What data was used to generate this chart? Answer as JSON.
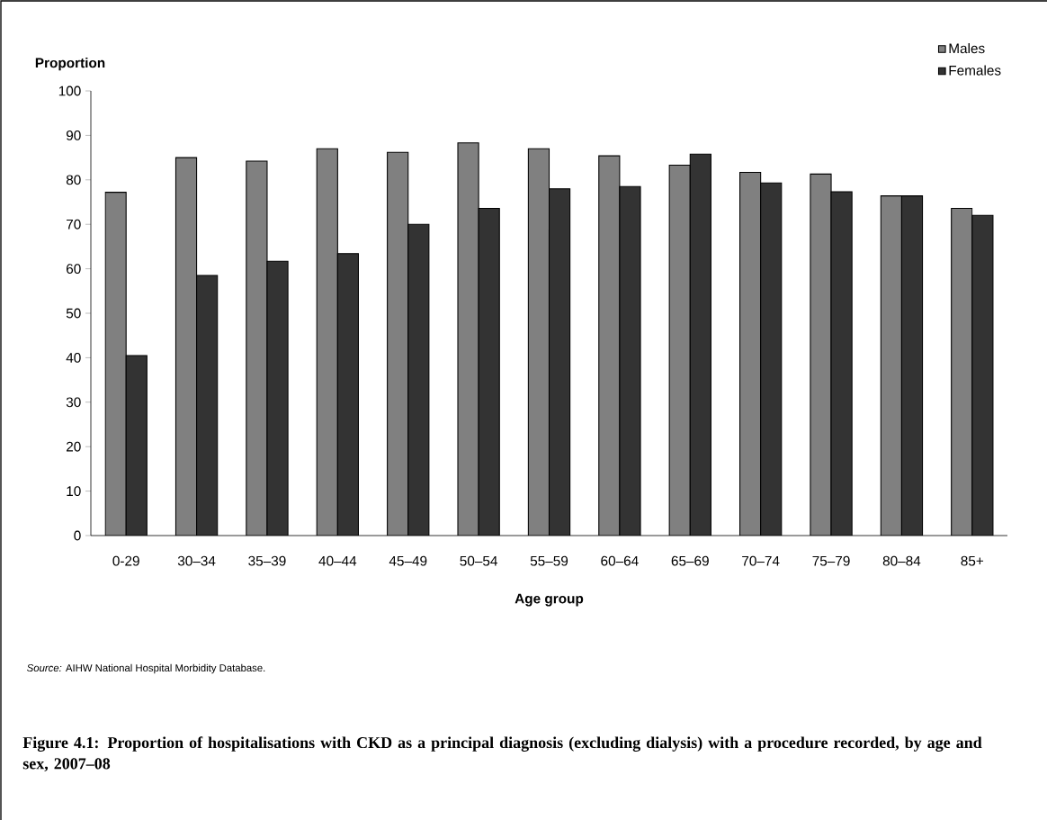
{
  "chart_data": {
    "type": "bar",
    "title": "Figure 4.1: Proportion of hospitalisations with CKD as a principal diagnosis (excluding dialysis) with a procedure recorded, by age and sex, 2007–08",
    "xlabel": "Age group",
    "ylabel": "Proportion",
    "annotations": [
      "*Source:* AIHW National Hospital Morbidity Database."
    ],
    "categories": [
      "0-29",
      "30–34",
      "35–39",
      "40–44",
      "45–49",
      "50–54",
      "55–59",
      "60–64",
      "65–69",
      "70–74",
      "75–79",
      "80–84",
      "85+"
    ],
    "series": [
      {
        "name": "Males",
        "color": "#808080",
        "values": [
          77.2,
          85.0,
          84.2,
          87.0,
          86.2,
          88.3,
          87.0,
          85.4,
          83.3,
          81.7,
          81.3,
          76.4,
          73.6
        ]
      },
      {
        "name": "Females",
        "color": "#333333",
        "values": [
          40.5,
          58.5,
          61.7,
          63.4,
          70.0,
          73.6,
          78.0,
          78.5,
          85.8,
          79.3,
          77.3,
          76.4,
          72.0
        ]
      }
    ],
    "ylim": [
      0,
      100
    ],
    "yticks": [
      0,
      10,
      20,
      30,
      40,
      50,
      60,
      70,
      80,
      90,
      100
    ],
    "legend": "top right",
    "grid": false
  }
}
